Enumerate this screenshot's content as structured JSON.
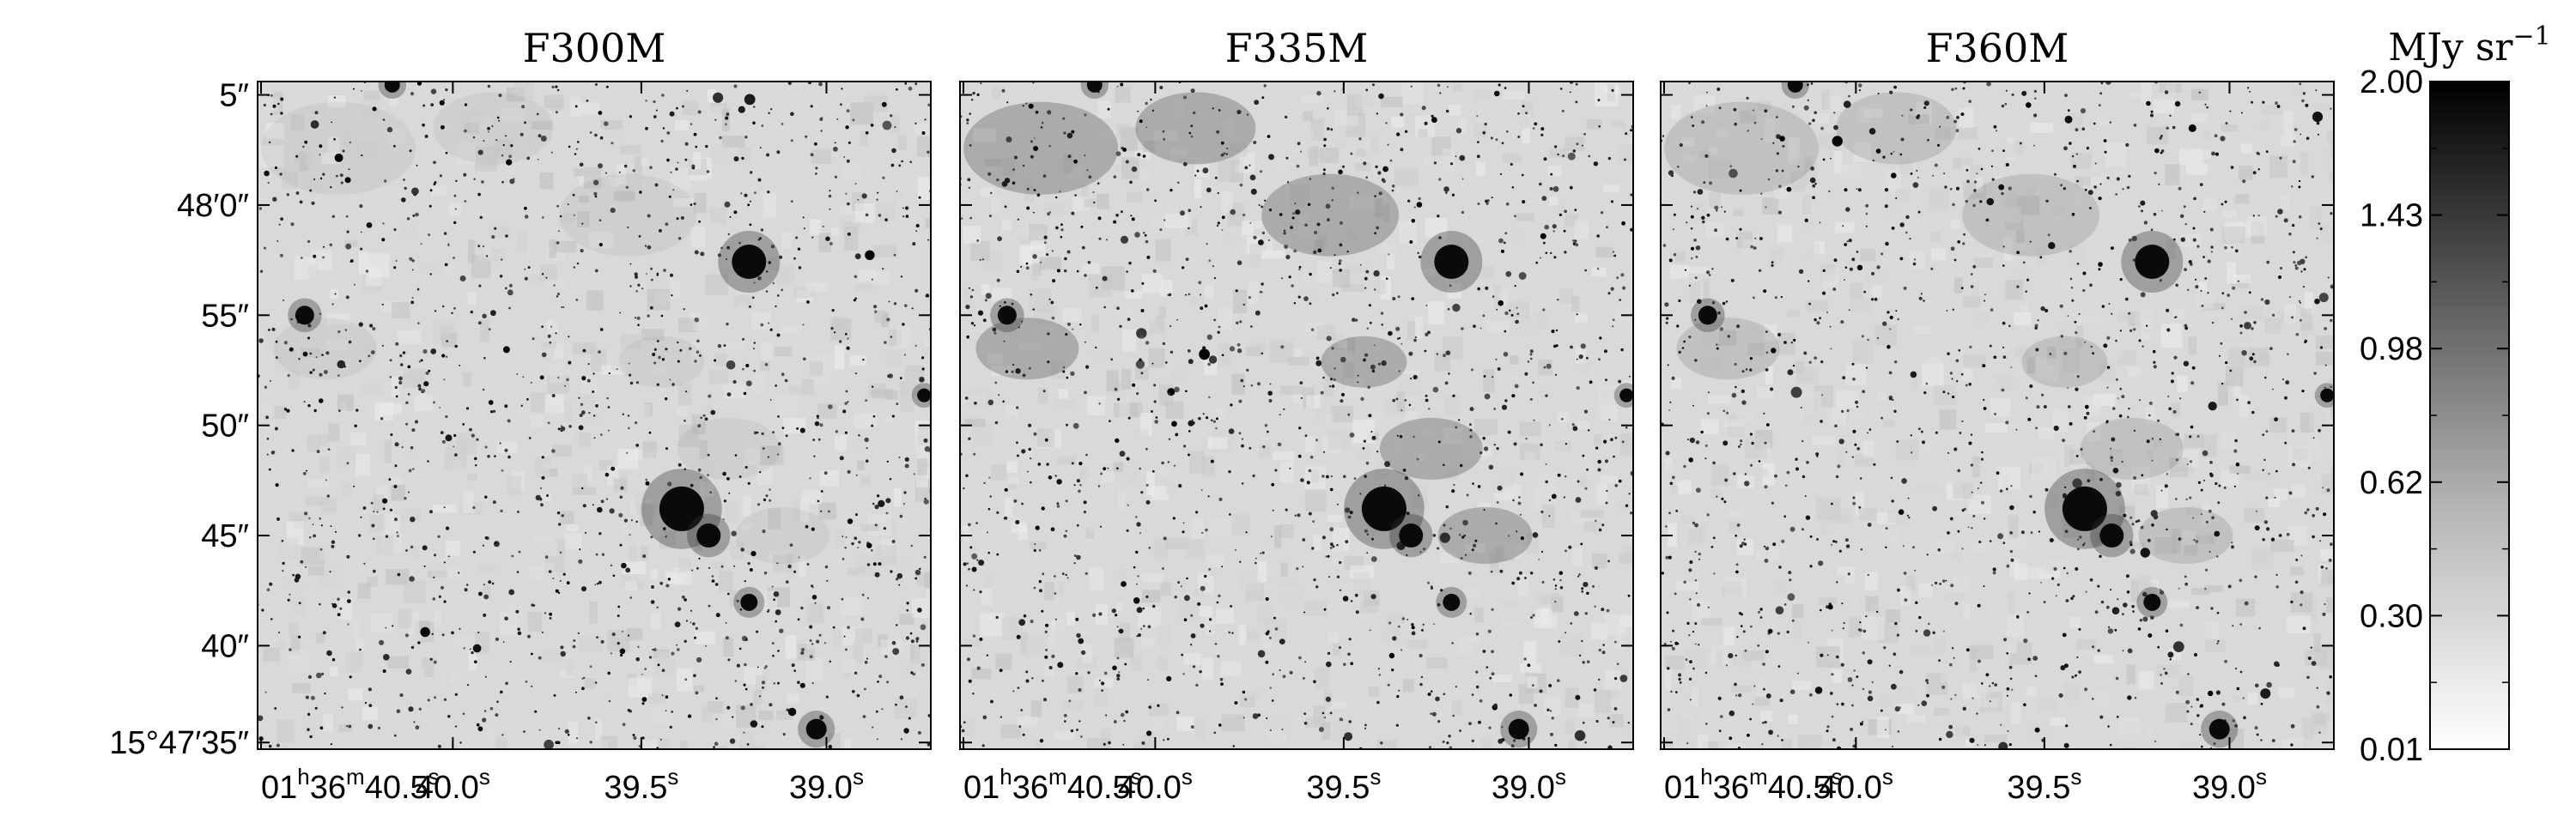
{
  "figure": {
    "panels": [
      {
        "title": "F300M",
        "variant": 0
      },
      {
        "title": "F335M",
        "variant": 1
      },
      {
        "title": "F360M",
        "variant": 2
      }
    ],
    "dec_ticks": [
      {
        "label": "5″",
        "frac": 0.02
      },
      {
        "label": "48′0″",
        "frac": 0.185
      },
      {
        "label": "55″",
        "frac": 0.35
      },
      {
        "label": "50″",
        "frac": 0.515
      },
      {
        "label": "45″",
        "frac": 0.68
      },
      {
        "label": "40″",
        "frac": 0.845
      },
      {
        "label": "15°47′35″",
        "frac": 0.99
      }
    ],
    "ra_ticks": [
      {
        "h": "01",
        "m": "36",
        "s": "40.5",
        "frac": 0.0,
        "anchor": "start"
      },
      {
        "s": "40.0",
        "frac": 0.29,
        "anchor": "middle"
      },
      {
        "s": "39.5",
        "frac": 0.57,
        "anchor": "middle"
      },
      {
        "s": "39.0",
        "frac": 0.845,
        "anchor": "middle"
      }
    ],
    "ra_units": {
      "h": "h",
      "m": "m",
      "s": "s"
    },
    "colorbar": {
      "title": "MJy sr",
      "title_exponent": "−1",
      "tick_labels": [
        "2.00",
        "1.43",
        "0.98",
        "0.62",
        "0.30",
        "0.01"
      ],
      "colors": {
        "high": "#000000",
        "low": "#ffffff"
      }
    }
  }
}
